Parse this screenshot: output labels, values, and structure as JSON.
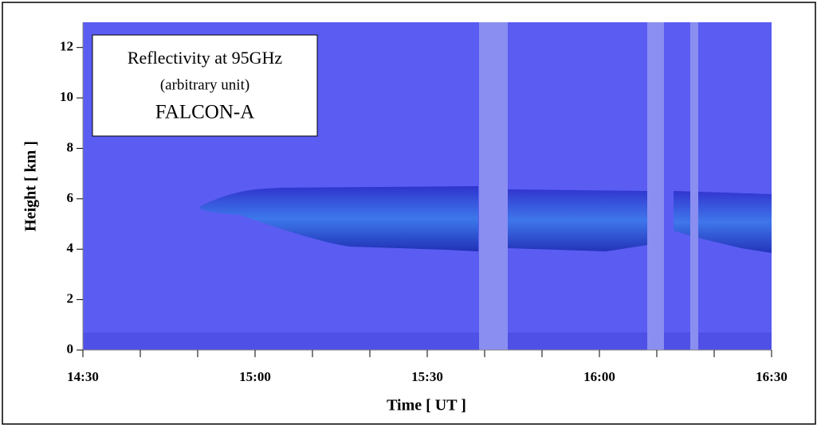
{
  "chart_data": {
    "type": "image",
    "annotation": [
      "Reflectivity at 95GHz",
      "(arbitrary unit)",
      "FALCON-A"
    ],
    "x_label": "Time [ UT ]",
    "y_label": "Height [ km ]",
    "xlim": [
      "14:30",
      "16:30"
    ],
    "xticks": [
      "14:30",
      "15:00",
      "15:30",
      "16:00",
      "16:30"
    ],
    "xminor_ticks": [
      "14:40",
      "14:50",
      "15:10",
      "15:20",
      "15:40",
      "15:50",
      "16:10",
      "16:20"
    ],
    "ylim": [
      0,
      13
    ],
    "yticks": [
      0,
      2,
      4,
      6,
      8,
      10,
      12
    ]
  }
}
